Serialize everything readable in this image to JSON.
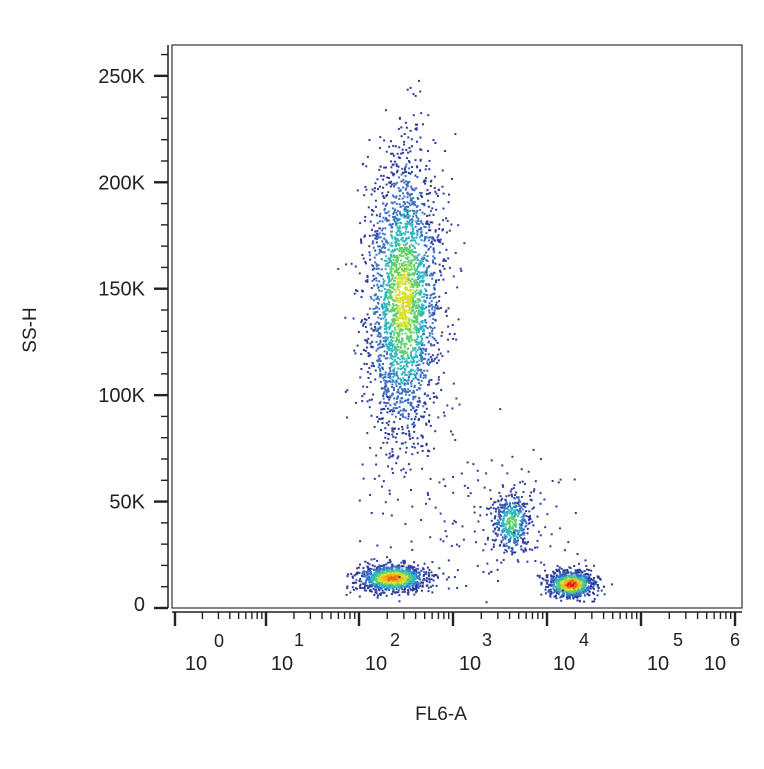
{
  "chart_data": {
    "type": "scatter",
    "title": "",
    "xlabel": "FL6-A",
    "ylabel": "SS-H",
    "x_scale": "log",
    "xlim": [
      1,
      1000000
    ],
    "ylim": [
      0,
      262144
    ],
    "grid": false,
    "legend": "none",
    "x_ticks": [
      {
        "value": 1,
        "base": "10",
        "exp": "0"
      },
      {
        "value": 10,
        "base": "10",
        "exp": "1"
      },
      {
        "value": 100,
        "base": "10",
        "exp": "2"
      },
      {
        "value": 1000,
        "base": "10",
        "exp": "3"
      },
      {
        "value": 10000,
        "base": "10",
        "exp": "4"
      },
      {
        "value": 100000,
        "base": "10",
        "exp": "5"
      },
      {
        "value": 1000000,
        "base": "10",
        "exp": "6"
      }
    ],
    "y_ticks": [
      {
        "value": 0,
        "label": "0"
      },
      {
        "value": 50000,
        "label": "50K"
      },
      {
        "value": 100000,
        "label": "100K"
      },
      {
        "value": 150000,
        "label": "150K"
      },
      {
        "value": 200000,
        "label": "200K"
      },
      {
        "value": 250000,
        "label": "250K"
      }
    ],
    "color_scale": [
      "#2d3a9c",
      "#3a6fc4",
      "#2fb7c0",
      "#5fcf6a",
      "#d6e22c",
      "#f5b21e",
      "#f06a14",
      "#e41a1c"
    ],
    "populations": [
      {
        "center": [
          300,
          145000
        ],
        "spread": [
          0.2,
          34000
        ],
        "count": 2600,
        "peak_color": "#d6e22c"
      },
      {
        "center": [
          230,
          14000
        ],
        "spread": [
          0.18,
          3200
        ],
        "count": 1100,
        "peak_color": "#f06a14"
      },
      {
        "center": [
          4200,
          40000
        ],
        "spread": [
          0.11,
          7500
        ],
        "count": 420,
        "peak_color": "#5fcf6a"
      },
      {
        "center": [
          18000,
          11000
        ],
        "spread": [
          0.12,
          3000
        ],
        "count": 1000,
        "peak_color": "#e41a1c"
      },
      {
        "center": [
          2000,
          40000
        ],
        "spread": [
          0.55,
          22000
        ],
        "count": 150,
        "peak_color": "#2d3a9c"
      }
    ]
  }
}
